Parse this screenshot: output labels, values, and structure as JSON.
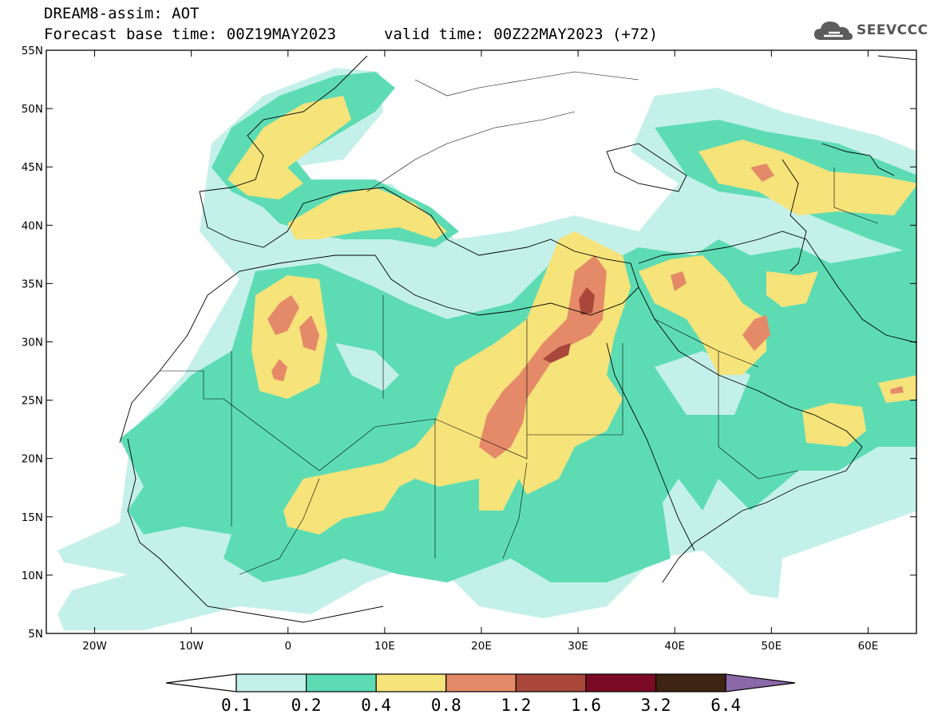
{
  "header": {
    "title": "DREAM8-assim: AOT",
    "base_time": "Forecast base time: 00Z19MAY2023",
    "valid_time": "valid time: 00Z22MAY2023 (+72)"
  },
  "logo": {
    "text": "SEEVCCC",
    "icon": "cloud-icon"
  },
  "map": {
    "lon_ticks": [
      "20W",
      "10W",
      "0",
      "10E",
      "20E",
      "30E",
      "40E",
      "50E",
      "60E"
    ],
    "lat_ticks": [
      "55N",
      "50N",
      "45N",
      "40N",
      "35N",
      "30N",
      "25N",
      "20N",
      "15N",
      "10N",
      "5N"
    ],
    "lon_range": [
      -25,
      65
    ],
    "lat_range": [
      5,
      55
    ]
  },
  "colorbar": {
    "labels": [
      "0.1",
      "0.2",
      "0.4",
      "0.8",
      "1.2",
      "1.6",
      "3.2",
      "6.4"
    ],
    "colors": [
      "#ffffff",
      "#c4f0ea",
      "#5ddcb4",
      "#f6e37a",
      "#e58a68",
      "#a9473a",
      "#7b0a24",
      "#3e2412",
      "#8b68a8"
    ]
  }
}
